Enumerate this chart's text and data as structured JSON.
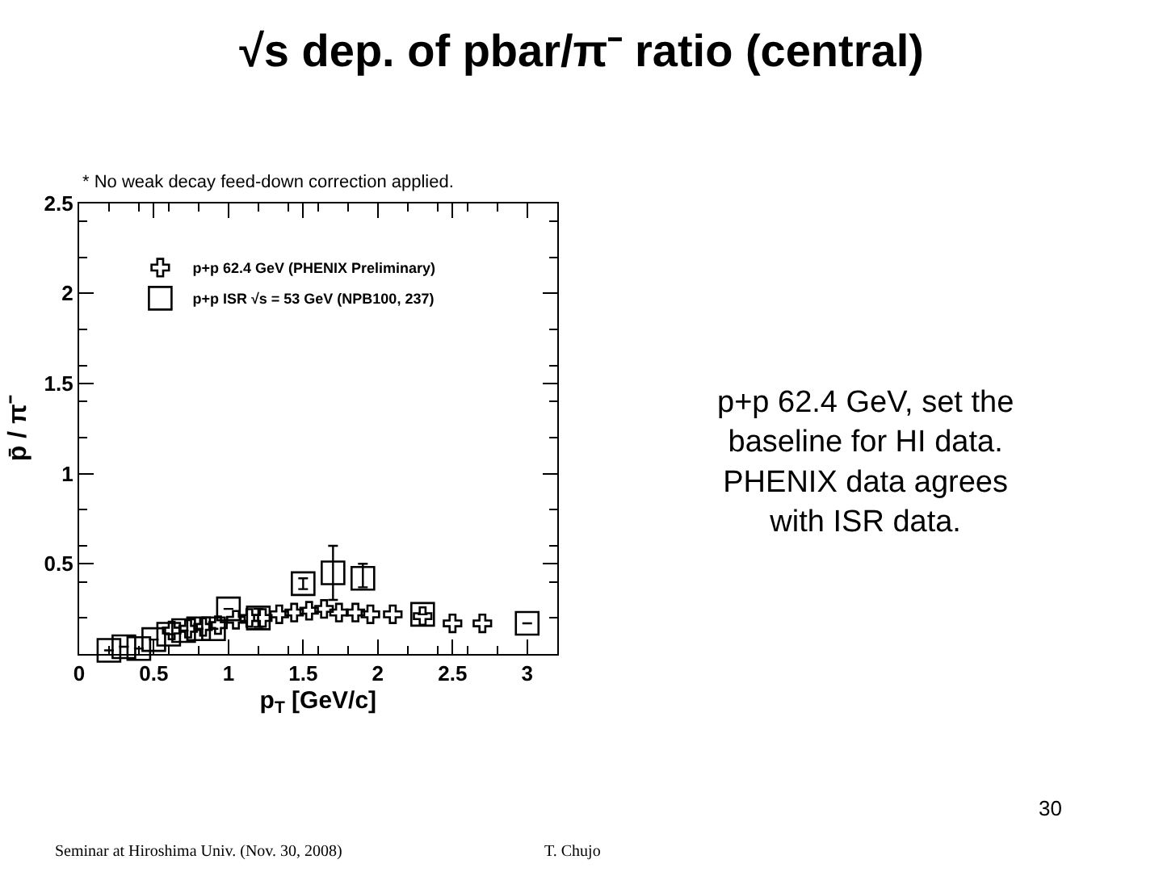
{
  "chart_data": {
    "type": "scatter",
    "title": "√s dep. of pbar/π⁻ ratio (central)",
    "xlabel": "p$_{T}$ [GeV/c]",
    "ylabel": "p̄ / π⁻",
    "annotations": [
      "* No weak decay feed-down correction applied.",
      "p+p 62.4 GeV, set the baseline for HI data. PHENIX data agrees with ISR data.",
      "30",
      "Seminar at Hiroshima Univ. (Nov. 30, 2008)",
      "T. Chujo"
    ],
    "series": [
      {
        "name": "p+p 62.4 GeV (PHENIX Preliminary)",
        "color": "#000000",
        "marker": "cross",
        "x": [
          0.62,
          0.73,
          0.83,
          0.93,
          1.05,
          1.14,
          1.23,
          1.34,
          1.44,
          1.54,
          1.64,
          1.74,
          1.85,
          1.95,
          2.1,
          2.3,
          2.5,
          2.7
        ],
        "values": [
          0.13,
          0.14,
          0.15,
          0.16,
          0.19,
          0.2,
          0.2,
          0.22,
          0.23,
          0.24,
          0.25,
          0.23,
          0.23,
          0.22,
          0.22,
          0.21,
          0.17,
          0.17
        ]
      },
      {
        "name": "p+p ISR √s = 53 GeV (NPB100, 237)",
        "color": "#000000",
        "marker": "square",
        "x": [
          0.2,
          0.3,
          0.4,
          0.5,
          0.6,
          0.7,
          0.8,
          0.9,
          1.0,
          1.2,
          1.5,
          1.7,
          1.9,
          2.3,
          3.0
        ],
        "values": [
          0.02,
          0.04,
          0.03,
          0.08,
          0.11,
          0.13,
          0.14,
          0.14,
          0.25,
          0.2,
          0.39,
          0.45,
          0.42,
          0.22,
          0.17
        ],
        "errors": [
          null,
          null,
          null,
          null,
          null,
          null,
          null,
          null,
          null,
          0.05,
          0.03,
          [
            0.3,
            0.6
          ],
          [
            0.37,
            0.5
          ],
          null,
          null
        ]
      }
    ],
    "xlim": [
      0,
      3.2
    ],
    "ylim": [
      0,
      2.5
    ],
    "xticks": [
      0,
      0.5,
      1,
      1.5,
      2,
      2.5,
      3
    ],
    "yticks": [
      0.5,
      1,
      1.5,
      2,
      2.5
    ],
    "grid": false,
    "legend": "top left"
  }
}
